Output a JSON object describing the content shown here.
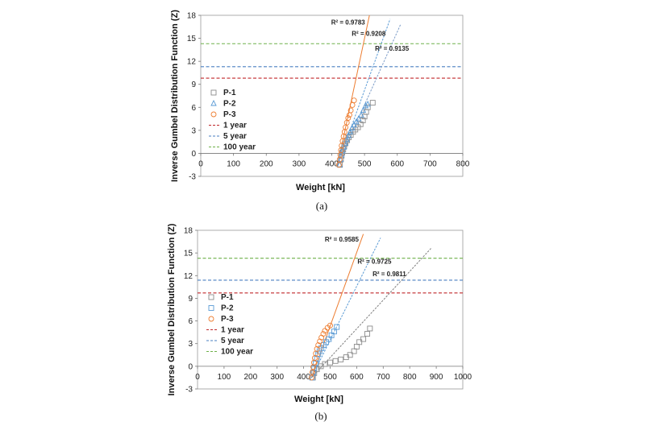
{
  "chart_data": [
    {
      "type": "scatter",
      "panel_label": "(a)",
      "xlabel": "Weight [kN]",
      "ylabel": "Inverse Gumbel Distribution Function (Z)",
      "xlim": [
        0,
        800
      ],
      "ylim": [
        -3,
        18
      ],
      "xticks": [
        0,
        100,
        200,
        300,
        400,
        500,
        600,
        700,
        800
      ],
      "yticks": [
        -3,
        0,
        3,
        6,
        9,
        12,
        15,
        18
      ],
      "grid": false,
      "legend_position": "left",
      "series": [
        {
          "name": "P-1",
          "color": "#8c8c8c",
          "marker": "square",
          "points": [
            [
              425,
              -1.5
            ],
            [
              428,
              -0.8
            ],
            [
              430,
              -0.3
            ],
            [
              432,
              0.1
            ],
            [
              435,
              0.5
            ],
            [
              438,
              0.9
            ],
            [
              442,
              1.3
            ],
            [
              447,
              1.7
            ],
            [
              452,
              2.1
            ],
            [
              458,
              2.4
            ],
            [
              465,
              2.8
            ],
            [
              472,
              3.1
            ],
            [
              480,
              3.4
            ],
            [
              488,
              3.8
            ],
            [
              495,
              4.3
            ],
            [
              500,
              4.8
            ],
            [
              505,
              5.4
            ],
            [
              510,
              6.0
            ],
            [
              525,
              6.6
            ]
          ]
        },
        {
          "name": "P-2",
          "color": "#5b9bd5",
          "marker": "triangle",
          "points": [
            [
              424,
              -1.5
            ],
            [
              427,
              -0.8
            ],
            [
              430,
              -0.2
            ],
            [
              433,
              0.3
            ],
            [
              437,
              0.8
            ],
            [
              441,
              1.3
            ],
            [
              446,
              1.8
            ],
            [
              451,
              2.3
            ],
            [
              456,
              2.8
            ],
            [
              462,
              3.3
            ],
            [
              468,
              3.7
            ],
            [
              475,
              4.1
            ],
            [
              482,
              4.5
            ],
            [
              490,
              5.0
            ],
            [
              496,
              5.6
            ],
            [
              503,
              6.2
            ],
            [
              510,
              6.4
            ]
          ]
        },
        {
          "name": "P-3",
          "color": "#ed7d31",
          "marker": "circle",
          "points": [
            [
              422,
              -1.5
            ],
            [
              424,
              -0.8
            ],
            [
              426,
              -0.2
            ],
            [
              428,
              0.4
            ],
            [
              430,
              1.0
            ],
            [
              433,
              1.6
            ],
            [
              436,
              2.2
            ],
            [
              439,
              2.8
            ],
            [
              442,
              3.4
            ],
            [
              446,
              4.0
            ],
            [
              450,
              4.6
            ],
            [
              454,
              5.0
            ],
            [
              458,
              5.6
            ],
            [
              463,
              6.3
            ],
            [
              468,
              6.9
            ]
          ]
        }
      ],
      "reference_lines": [
        {
          "name": "1 year",
          "y": 9.8,
          "color": "#c0282b"
        },
        {
          "name": "5 year",
          "y": 11.3,
          "color": "#4a7fc0"
        },
        {
          "name": "100 year",
          "y": 14.3,
          "color": "#6fb04a"
        }
      ],
      "trendlines": [
        {
          "color": "#ed7d31",
          "x": [
            418,
            515
          ],
          "y": [
            -1.5,
            18.0
          ],
          "r2_label": "R² = 0.9783",
          "label_at": [
            398,
            16.8
          ]
        },
        {
          "color": "#5b9bd5",
          "x": [
            418,
            578
          ],
          "y": [
            -1.5,
            17.5
          ],
          "r2_label": "R² = 0.9208",
          "label_at": [
            461,
            15.3
          ]
        },
        {
          "color": "#7f9ec9",
          "x": [
            418,
            610
          ],
          "y": [
            -1.5,
            16.8
          ],
          "r2_label": "R² = 0.9135",
          "label_at": [
            532,
            13.4
          ]
        }
      ]
    },
    {
      "type": "scatter",
      "panel_label": "(b)",
      "xlabel": "Weight [kN]",
      "ylabel": "Inverse Gumbel Distribution Function (Z)",
      "xlim": [
        0,
        1000
      ],
      "ylim": [
        -3,
        18
      ],
      "xticks": [
        0,
        100,
        200,
        300,
        400,
        500,
        600,
        700,
        800,
        900,
        1000
      ],
      "yticks": [
        -3,
        0,
        3,
        6,
        9,
        12,
        15,
        18
      ],
      "grid": false,
      "legend_position": "left",
      "series": [
        {
          "name": "P-1",
          "color": "#8c8c8c",
          "marker": "square",
          "points": [
            [
              435,
              -1.5
            ],
            [
              440,
              -0.9
            ],
            [
              450,
              -0.4
            ],
            [
              465,
              0.0
            ],
            [
              480,
              0.3
            ],
            [
              500,
              0.5
            ],
            [
              520,
              0.7
            ],
            [
              540,
              0.9
            ],
            [
              560,
              1.2
            ],
            [
              575,
              1.5
            ],
            [
              590,
              2.0
            ],
            [
              600,
              2.6
            ],
            [
              610,
              3.2
            ],
            [
              625,
              3.6
            ],
            [
              640,
              4.3
            ],
            [
              650,
              5.0
            ]
          ]
        },
        {
          "name": "P-2",
          "color": "#5b9bd5",
          "marker": "square",
          "points": [
            [
              432,
              -1.5
            ],
            [
              436,
              -0.8
            ],
            [
              440,
              -0.2
            ],
            [
              445,
              0.4
            ],
            [
              450,
              1.0
            ],
            [
              455,
              1.6
            ],
            [
              460,
              2.0
            ],
            [
              467,
              2.4
            ],
            [
              475,
              2.8
            ],
            [
              485,
              3.2
            ],
            [
              495,
              3.6
            ],
            [
              505,
              4.1
            ],
            [
              515,
              4.6
            ],
            [
              525,
              5.2
            ]
          ]
        },
        {
          "name": "P-3",
          "color": "#ed7d31",
          "marker": "circle",
          "points": [
            [
              430,
              -1.5
            ],
            [
              433,
              -0.8
            ],
            [
              436,
              -0.1
            ],
            [
              439,
              0.5
            ],
            [
              442,
              1.1
            ],
            [
              446,
              1.7
            ],
            [
              450,
              2.3
            ],
            [
              455,
              2.8
            ],
            [
              461,
              3.3
            ],
            [
              467,
              3.8
            ],
            [
              474,
              4.3
            ],
            [
              480,
              4.7
            ],
            [
              490,
              5.1
            ],
            [
              500,
              5.4
            ]
          ]
        }
      ],
      "reference_lines": [
        {
          "name": "1 year",
          "y": 9.7,
          "color": "#c0282b"
        },
        {
          "name": "5 year",
          "y": 11.4,
          "color": "#4a7fc0"
        },
        {
          "name": "100 year",
          "y": 14.3,
          "color": "#6fb04a"
        }
      ],
      "trendlines": [
        {
          "color": "#ed7d31",
          "x": [
            430,
            625
          ],
          "y": [
            -1.5,
            17.5
          ],
          "r2_label": "R² = 0.9585",
          "label_at": [
            480,
            16.5
          ]
        },
        {
          "color": "#5b9bd5",
          "x": [
            430,
            690
          ],
          "y": [
            -1.5,
            17.0
          ],
          "r2_label": "R² = 0.9725",
          "label_at": [
            603,
            13.6
          ]
        },
        {
          "color": "#7f7f7f",
          "x": [
            430,
            880
          ],
          "y": [
            -1.5,
            15.6
          ],
          "r2_label": "R² = 0.9811",
          "label_at": [
            660,
            11.9
          ]
        }
      ]
    }
  ]
}
